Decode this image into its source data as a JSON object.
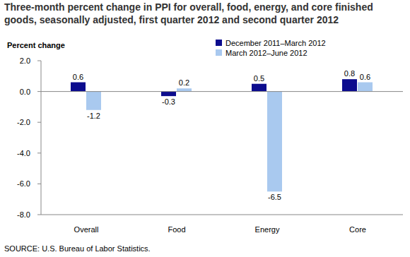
{
  "chart_data": {
    "type": "bar",
    "title": "Three-month percent change in PPI for overall, food, energy, and core finished goods, seasonally adjusted, first quarter 2012 and second quarter 2012",
    "y_label": "Percent change",
    "source": "SOURCE: U.S. Bureau of Labor Statistics.",
    "categories": [
      "Overall",
      "Food",
      "Energy",
      "Core"
    ],
    "series": [
      {
        "name": "December 2011–March 2012",
        "color": "#0c0c8e",
        "values": [
          0.6,
          -0.3,
          0.5,
          0.8
        ]
      },
      {
        "name": "March 2012–June 2012",
        "color": "#a9c9ef",
        "values": [
          -1.2,
          0.2,
          -6.5,
          0.6
        ]
      }
    ],
    "ylim": [
      -8,
      2
    ],
    "yticks": [
      {
        "value": -8,
        "label": "-8.0"
      },
      {
        "value": -6,
        "label": "-6.0"
      },
      {
        "value": -4,
        "label": "-4.0"
      },
      {
        "value": -2,
        "label": "-2.0"
      },
      {
        "value": 0,
        "label": "0.0"
      },
      {
        "value": 2,
        "label": "2.0"
      }
    ],
    "grid": false,
    "legend": "top-right",
    "data_labels": true
  }
}
